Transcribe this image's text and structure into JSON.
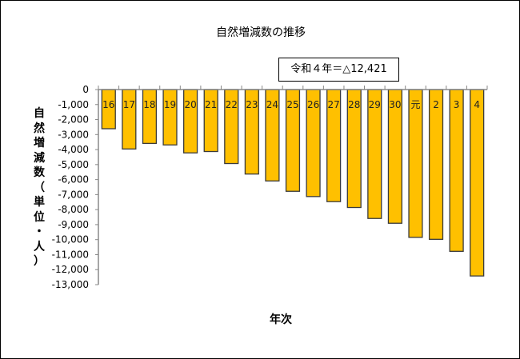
{
  "chart_data": {
    "type": "bar",
    "title": "自然増減数の推移",
    "annotation": "令和４年＝△12,421",
    "xlabel": "年次",
    "ylabel": "自然増減数（単位・人）",
    "categories": [
      "16",
      "17",
      "18",
      "19",
      "20",
      "21",
      "22",
      "23",
      "24",
      "25",
      "26",
      "27",
      "28",
      "29",
      "30",
      "元",
      "2",
      "3",
      "4"
    ],
    "values": [
      -2610,
      -3960,
      -3590,
      -3690,
      -4220,
      -4130,
      -4930,
      -5630,
      -6090,
      -6780,
      -7130,
      -7470,
      -7860,
      -8590,
      -8910,
      -9850,
      -9980,
      -10780,
      -12421
    ],
    "ylim": [
      -13000,
      0
    ],
    "yticks": [
      0,
      -1000,
      -2000,
      -3000,
      -4000,
      -5000,
      -6000,
      -7000,
      -8000,
      -9000,
      -10000,
      -11000,
      -12000,
      -13000
    ],
    "ytick_labels": [
      "0",
      "-1,000",
      "-2,000",
      "-3,000",
      "-4,000",
      "-5,000",
      "-6,000",
      "-7,000",
      "-8,000",
      "-9,000",
      "-10,000",
      "-11,000",
      "-12,000",
      "-13,000"
    ],
    "grid": false,
    "bar_color": "#FFC000"
  }
}
